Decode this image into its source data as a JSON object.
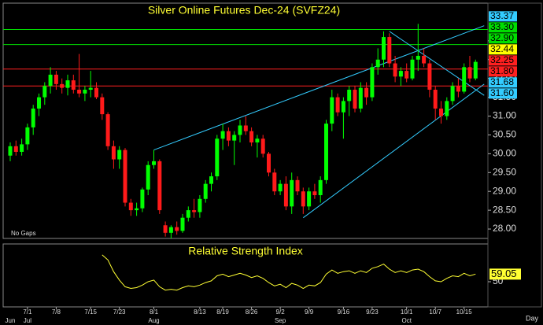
{
  "chart_data": [
    {
      "type": "candlestick",
      "title": "Silver Online Futures Dec-24 (SVFZ24)",
      "note": "No Gaps",
      "x_axis_label": "Day",
      "categories": [
        null,
        null,
        null,
        "7/1",
        null,
        null,
        null,
        null,
        "7/8",
        null,
        null,
        null,
        null,
        null,
        "7/15",
        null,
        null,
        null,
        null,
        "7/23",
        null,
        null,
        null,
        null,
        null,
        "8/1",
        null,
        null,
        null,
        null,
        null,
        null,
        null,
        "8/13",
        null,
        null,
        null,
        "8/19",
        null,
        null,
        null,
        null,
        "8/26",
        null,
        null,
        null,
        null,
        "9/2",
        null,
        null,
        null,
        null,
        "9/9",
        null,
        null,
        null,
        null,
        null,
        "9/16",
        null,
        null,
        null,
        null,
        "9/23",
        null,
        null,
        null,
        null,
        null,
        "10/1",
        null,
        null,
        null,
        null,
        "10/7",
        null,
        null,
        null,
        null,
        "10/15",
        null,
        null
      ],
      "months": [
        "Jun",
        null,
        null,
        "Jul",
        null,
        null,
        null,
        null,
        null,
        null,
        null,
        null,
        null,
        null,
        null,
        null,
        null,
        null,
        null,
        null,
        null,
        null,
        null,
        null,
        null,
        "Aug",
        null,
        null,
        null,
        null,
        null,
        null,
        null,
        null,
        null,
        null,
        null,
        null,
        null,
        null,
        null,
        null,
        null,
        null,
        null,
        null,
        null,
        "Sep",
        null,
        null,
        null,
        null,
        null,
        null,
        null,
        null,
        null,
        null,
        null,
        null,
        null,
        null,
        null,
        null,
        null,
        null,
        null,
        null,
        null,
        "Oct",
        null,
        null,
        null,
        null,
        null,
        null,
        null,
        null,
        null,
        null,
        null,
        null
      ],
      "open": [
        29.95,
        30.2,
        30.05,
        30.25,
        30.7,
        31.2,
        31.5,
        31.8,
        32.1,
        31.85,
        31.75,
        31.95,
        31.7,
        31.6,
        31.7,
        31.75,
        31.5,
        31.05,
        30.2,
        29.85,
        30.1,
        28.7,
        28.5,
        28.55,
        29.05,
        29.7,
        29.8,
        28.1,
        27.9,
        28.05,
        27.95,
        28.3,
        28.5,
        28.45,
        28.8,
        29.2,
        29.4,
        30.4,
        30.6,
        30.35,
        30.5,
        30.75,
        30.6,
        30.3,
        30.4,
        30.0,
        29.5,
        29.0,
        29.2,
        28.6,
        29.3,
        29.0,
        28.6,
        29.0,
        28.9,
        29.3,
        30.8,
        31.5,
        31.1,
        31.4,
        31.7,
        31.2,
        31.75,
        31.5,
        32.3,
        32.5,
        33.1,
        32.4,
        32.05,
        32.2,
        32.0,
        32.5,
        32.6,
        32.4,
        31.7,
        31.2,
        31.0,
        31.4,
        31.8,
        31.65,
        32.3,
        32.0
      ],
      "high": [
        30.3,
        30.35,
        30.4,
        30.8,
        31.3,
        31.6,
        31.9,
        32.3,
        32.2,
        32.0,
        32.1,
        32.1,
        32.65,
        31.8,
        32.2,
        31.9,
        31.6,
        31.1,
        30.35,
        30.2,
        30.15,
        28.8,
        28.7,
        29.1,
        29.8,
        30.1,
        29.85,
        28.2,
        28.1,
        28.2,
        28.4,
        28.6,
        28.8,
        28.9,
        29.3,
        29.5,
        30.5,
        30.8,
        30.7,
        30.6,
        30.9,
        31.0,
        30.7,
        30.5,
        30.5,
        30.05,
        29.6,
        29.3,
        29.4,
        29.5,
        29.4,
        29.1,
        29.1,
        29.2,
        29.4,
        30.9,
        31.7,
        31.6,
        31.5,
        31.8,
        31.8,
        31.9,
        31.9,
        32.4,
        32.8,
        33.25,
        33.2,
        32.6,
        32.3,
        32.4,
        32.6,
        33.45,
        32.8,
        32.5,
        31.8,
        31.4,
        31.5,
        31.9,
        32.0,
        32.4,
        32.6,
        32.5
      ],
      "low": [
        29.8,
        29.95,
        29.95,
        30.1,
        30.5,
        31.0,
        31.3,
        31.6,
        31.7,
        31.6,
        31.55,
        31.6,
        31.5,
        31.4,
        31.5,
        31.45,
        30.9,
        30.1,
        29.6,
        29.6,
        28.6,
        28.35,
        28.35,
        28.45,
        28.9,
        29.6,
        28.4,
        27.8,
        27.75,
        27.85,
        27.9,
        28.2,
        28.3,
        28.3,
        28.7,
        29.0,
        29.3,
        30.1,
        30.2,
        29.7,
        30.3,
        30.5,
        30.2,
        29.9,
        29.9,
        29.4,
        28.9,
        28.9,
        28.5,
        28.4,
        28.9,
        28.4,
        28.5,
        28.8,
        28.7,
        29.2,
        30.6,
        31.0,
        30.4,
        31.0,
        31.1,
        31.1,
        31.3,
        31.4,
        32.1,
        32.3,
        32.3,
        31.9,
        31.8,
        31.9,
        31.95,
        32.2,
        32.3,
        31.5,
        30.9,
        30.8,
        30.9,
        31.3,
        31.5,
        31.6,
        31.9,
        31.95
      ],
      "close": [
        30.2,
        30.05,
        30.25,
        30.7,
        31.2,
        31.5,
        31.8,
        32.1,
        31.85,
        31.75,
        31.95,
        31.7,
        31.6,
        31.7,
        31.75,
        31.5,
        31.05,
        30.2,
        29.85,
        30.1,
        28.7,
        28.5,
        28.55,
        29.05,
        29.7,
        29.8,
        28.5,
        27.9,
        28.05,
        27.95,
        28.3,
        28.5,
        28.45,
        28.8,
        29.2,
        29.4,
        30.4,
        30.6,
        30.35,
        30.5,
        30.75,
        30.6,
        30.3,
        30.4,
        30.0,
        29.5,
        29.0,
        29.2,
        28.6,
        29.3,
        29.0,
        28.6,
        29.0,
        28.9,
        29.3,
        30.8,
        31.5,
        31.1,
        31.4,
        31.7,
        31.2,
        31.75,
        31.5,
        32.3,
        32.5,
        33.1,
        32.4,
        32.05,
        32.2,
        32.0,
        32.5,
        32.6,
        32.4,
        31.7,
        31.2,
        31.0,
        31.4,
        31.8,
        31.65,
        32.3,
        32.0,
        32.44
      ],
      "up_color": "#00ff00",
      "down_color": "#ff1a1a",
      "ylim": [
        27.75,
        34.0
      ],
      "yticks": [
        {
          "value": 28,
          "label": "28.00"
        },
        {
          "value": 28.5,
          "label": "28.50"
        },
        {
          "value": 29,
          "label": "29.00"
        },
        {
          "value": 29.5,
          "label": "29.50"
        },
        {
          "value": 30,
          "label": "30.00"
        },
        {
          "value": 30.5,
          "label": "30.50"
        },
        {
          "value": 31,
          "label": "31.00"
        },
        {
          "value": 31.5,
          "label": "31.50"
        },
        {
          "value": 32,
          "label": "32.00"
        },
        {
          "value": 32.5,
          "label": "32.50"
        },
        {
          "value": 33,
          "label": "33.00"
        }
      ],
      "price_markers": [
        {
          "value": 33.37,
          "color": "#33ccff",
          "line": false
        },
        {
          "value": 33.3,
          "label": "33.30",
          "color": "#00dd00",
          "line": true
        },
        {
          "value": 32.9,
          "label": "32.90",
          "color": "#00dd00",
          "line": true
        },
        {
          "value": 32.44,
          "color": "#ffff00",
          "line": false
        },
        {
          "value": 32.25,
          "color": "#ff2020",
          "line": true
        },
        {
          "value": 31.8,
          "label": "31.80",
          "color": "#ff2020",
          "line": true
        },
        {
          "value": 31.68,
          "color": "#33ccff",
          "line": false
        },
        {
          "value": 31.6,
          "label": "31.60",
          "color": "#33ccff",
          "line": false
        }
      ],
      "trend_color": "#33ccff",
      "trendlines": [
        {
          "x": [
            25,
            82.5
          ],
          "y": [
            30.1,
            33.4
          ]
        },
        {
          "x": [
            51,
            82.5
          ],
          "y": [
            28.3,
            31.85
          ]
        },
        {
          "x": [
            66,
            82.5
          ],
          "y": [
            33.25,
            31.55
          ]
        }
      ]
    },
    {
      "type": "line",
      "title": "Relative Strength Index",
      "series": [
        {
          "color": "#ffff33",
          "values": [
            null,
            null,
            null,
            null,
            null,
            null,
            null,
            null,
            null,
            null,
            null,
            null,
            null,
            null,
            null,
            null,
            82,
            76,
            62,
            52,
            44,
            42,
            43,
            46,
            50,
            52,
            44,
            40,
            41,
            40,
            43,
            45,
            44,
            46,
            49,
            51,
            57,
            59,
            56,
            58,
            60,
            58,
            55,
            57,
            54,
            49,
            45,
            47,
            43,
            48,
            46,
            42,
            46,
            45,
            49,
            59,
            64,
            60,
            62,
            63,
            60,
            63,
            61,
            66,
            68,
            71,
            65,
            61,
            63,
            61,
            64,
            65,
            62,
            56,
            51,
            50,
            54,
            57,
            56,
            60,
            57,
            59.05
          ]
        }
      ],
      "ylim": [
        20,
        95
      ],
      "yticks": [
        50
      ]
    }
  ]
}
